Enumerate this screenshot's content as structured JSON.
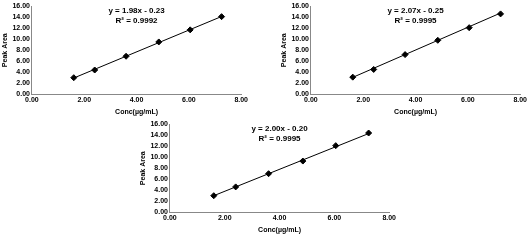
{
  "chart_data": [
    {
      "type": "scatter",
      "x": [
        1.6,
        2.4,
        3.6,
        4.85,
        6.05,
        7.25
      ],
      "values": [
        3.0,
        4.4,
        6.9,
        9.5,
        11.7,
        14.1
      ],
      "color": "#000000",
      "marker": "diamond",
      "trendline": {
        "x": [
          1.6,
          7.25
        ],
        "values": [
          2.94,
          14.13
        ],
        "color": "#000000"
      },
      "annotations": [
        "y = 1.98x - 0.23",
        "R² = 0.9992"
      ],
      "xlabel": "Conc(µg/mL)",
      "ylabel": "Peak Area",
      "xlim": [
        0,
        8
      ],
      "xticks": [
        {
          "value": 0,
          "label": "0.00"
        },
        {
          "value": 2,
          "label": "2.00"
        },
        {
          "value": 4,
          "label": "4.00"
        },
        {
          "value": 6,
          "label": "6.00"
        },
        {
          "value": 8,
          "label": "8.00"
        }
      ],
      "ylim": [
        0,
        16
      ],
      "yticks": [
        {
          "value": 0,
          "label": "0.00"
        },
        {
          "value": 2,
          "label": "2.00"
        },
        {
          "value": 4,
          "label": "4.00"
        },
        {
          "value": 6,
          "label": "6.00"
        },
        {
          "value": 8,
          "label": "8.00"
        },
        {
          "value": 10,
          "label": "10.00"
        },
        {
          "value": 12,
          "label": "12.00"
        },
        {
          "value": 14,
          "label": "14.00"
        },
        {
          "value": 16,
          "label": "16.00"
        }
      ],
      "grid": false
    },
    {
      "type": "scatter",
      "x": [
        1.6,
        2.4,
        3.6,
        4.85,
        6.05,
        7.25
      ],
      "values": [
        3.1,
        4.5,
        7.2,
        9.8,
        12.1,
        14.6
      ],
      "color": "#000000",
      "marker": "diamond",
      "trendline": {
        "x": [
          1.6,
          7.25
        ],
        "values": [
          3.06,
          14.76
        ],
        "color": "#000000"
      },
      "annotations": [
        "y = 2.07x - 0.25",
        "R² = 0.9995"
      ],
      "xlabel": "Conc(µg/mL)",
      "ylabel": "Peak Area",
      "xlim": [
        0,
        8
      ],
      "xticks": [
        {
          "value": 0,
          "label": "0.00"
        },
        {
          "value": 2,
          "label": "2.00"
        },
        {
          "value": 4,
          "label": "4.00"
        },
        {
          "value": 6,
          "label": "6.00"
        },
        {
          "value": 8,
          "label": "8.00"
        }
      ],
      "ylim": [
        0,
        16
      ],
      "yticks": [
        {
          "value": 0,
          "label": "0.00"
        },
        {
          "value": 2,
          "label": "2.00"
        },
        {
          "value": 4,
          "label": "4.00"
        },
        {
          "value": 6,
          "label": "6.00"
        },
        {
          "value": 8,
          "label": "8.00"
        },
        {
          "value": 10,
          "label": "10.00"
        },
        {
          "value": 12,
          "label": "12.00"
        },
        {
          "value": 14,
          "label": "14.00"
        },
        {
          "value": 16,
          "label": "16.00"
        }
      ],
      "grid": false
    },
    {
      "type": "scatter",
      "x": [
        1.6,
        2.4,
        3.6,
        4.85,
        6.05,
        7.25
      ],
      "values": [
        3.0,
        4.6,
        7.0,
        9.3,
        12.1,
        14.4
      ],
      "color": "#000000",
      "marker": "diamond",
      "trendline": {
        "x": [
          1.6,
          7.25
        ],
        "values": [
          3.0,
          14.3
        ],
        "color": "#000000"
      },
      "annotations": [
        "y = 2.00x - 0.20",
        "R² = 0.9995"
      ],
      "xlabel": "Conc(µg/mL)",
      "ylabel": "Peak Area",
      "xlim": [
        0,
        8
      ],
      "xticks": [
        {
          "value": 0,
          "label": "0.00"
        },
        {
          "value": 2,
          "label": "2.00"
        },
        {
          "value": 4,
          "label": "4.00"
        },
        {
          "value": 6,
          "label": "6.00"
        },
        {
          "value": 8,
          "label": "8.00"
        }
      ],
      "ylim": [
        0,
        16
      ],
      "yticks": [
        {
          "value": 0,
          "label": "0.00"
        },
        {
          "value": 2,
          "label": "2.00"
        },
        {
          "value": 4,
          "label": "4.00"
        },
        {
          "value": 6,
          "label": "6.00"
        },
        {
          "value": 8,
          "label": "8.00"
        },
        {
          "value": 10,
          "label": "10.00"
        },
        {
          "value": 12,
          "label": "12.00"
        },
        {
          "value": 14,
          "label": "14.00"
        },
        {
          "value": 16,
          "label": "16.00"
        }
      ],
      "grid": false
    }
  ]
}
